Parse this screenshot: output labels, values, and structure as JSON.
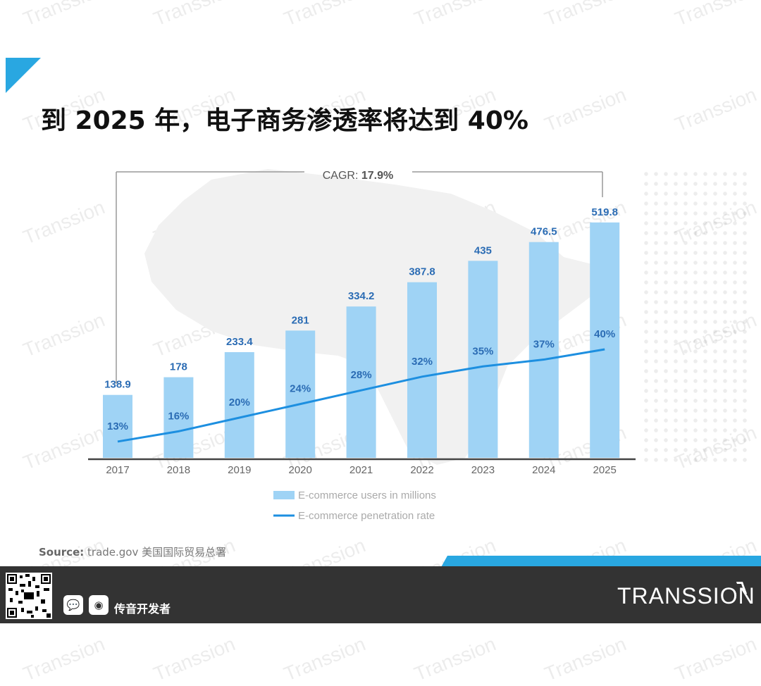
{
  "page": {
    "title": "到 2025 年，电子商务渗透率将达到 40%",
    "watermark": "Transsion",
    "accent_color": "#29a7e1",
    "bar_color": "#9fd3f5",
    "line_color": "#1d8fe0"
  },
  "chart_data": {
    "type": "bar",
    "categories": [
      "2017",
      "2018",
      "2019",
      "2020",
      "2021",
      "2022",
      "2023",
      "2024",
      "2025"
    ],
    "series": [
      {
        "name": "E-commerce users in millions",
        "type": "bar",
        "values": [
          138.9,
          178,
          233.4,
          281,
          334.2,
          387.8,
          435,
          476.5,
          519.8
        ],
        "labels": [
          "138.9",
          "178",
          "233.4",
          "281",
          "334.2",
          "387.8",
          "435",
          "476.5",
          "519.8"
        ]
      },
      {
        "name": "E-commerce penetration rate",
        "type": "line",
        "values": [
          13,
          16,
          20,
          24,
          28,
          32,
          35,
          37,
          40
        ],
        "labels": [
          "13%",
          "16%",
          "20%",
          "24%",
          "28%",
          "32%",
          "35%",
          "37%",
          "40%"
        ]
      }
    ],
    "annotation": {
      "prefix": "CAGR: ",
      "value": "17.9%"
    },
    "ylim": [
      0,
      560
    ]
  },
  "source": {
    "label": "Source:",
    "text": "trade.gov 美国国际贸易总署"
  },
  "footer": {
    "wechat_icon": "wechat-icon",
    "weibo_icon": "weibo-icon",
    "account_name": "传音开发者",
    "brand": "TRANSSION"
  }
}
